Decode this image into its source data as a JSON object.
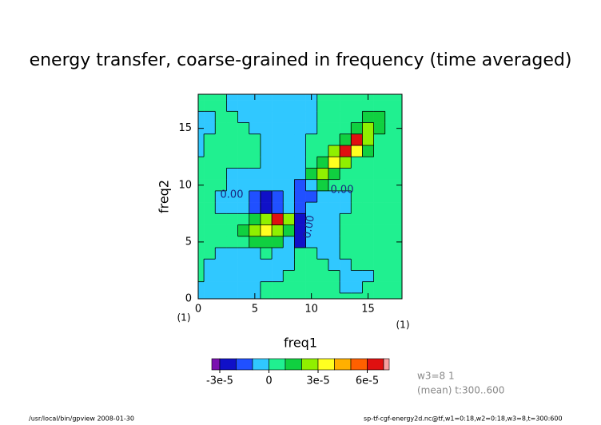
{
  "chart_data": {
    "type": "contour",
    "title": "energy transfer, coarse-grained in frequency (time averaged)",
    "xlabel": "freq1",
    "ylabel": "freq2",
    "x_unit": "(1)",
    "y_unit": "(1)",
    "xlim": [
      0,
      18
    ],
    "ylim": [
      0,
      18
    ],
    "xticks": [
      0,
      5,
      10,
      15
    ],
    "yticks": [
      0,
      5,
      10,
      15
    ],
    "z": [
      [
        -5e-06,
        -5e-06,
        -5e-06,
        -5e-06,
        -5e-06,
        -5e-06,
        5e-06,
        5e-06,
        5e-06,
        5e-06,
        5e-06,
        5e-06,
        5e-06,
        5e-06,
        5e-06,
        5e-06,
        5e-06,
        5e-06,
        5e-06
      ],
      [
        -5e-06,
        -5e-06,
        -5e-06,
        -5e-06,
        -5e-06,
        -5e-06,
        5e-06,
        5e-06,
        5e-06,
        5e-06,
        5e-06,
        5e-06,
        5e-06,
        -5e-06,
        -5e-06,
        5e-06,
        5e-06,
        5e-06,
        5e-06
      ],
      [
        5e-06,
        -5e-06,
        -5e-06,
        -5e-06,
        -5e-06,
        -5e-06,
        -5e-06,
        -5e-06,
        5e-06,
        5e-06,
        5e-06,
        5e-06,
        5e-06,
        -5e-06,
        -5e-06,
        -5e-06,
        5e-06,
        5e-06,
        5e-06
      ],
      [
        5e-06,
        -5e-06,
        -5e-06,
        -5e-06,
        -5e-06,
        -5e-06,
        -5e-06,
        -5e-06,
        -5e-06,
        5e-06,
        5e-06,
        5e-06,
        -5e-06,
        -5e-06,
        5e-06,
        5e-06,
        5e-06,
        5e-06,
        5e-06
      ],
      [
        5e-06,
        5e-06,
        -5e-06,
        -5e-06,
        -5e-06,
        -5e-06,
        5e-06,
        -5e-06,
        -5e-06,
        5e-06,
        5e-06,
        -5e-06,
        -5e-06,
        5e-06,
        5e-06,
        5e-06,
        5e-06,
        5e-06,
        5e-06
      ],
      [
        5e-06,
        5e-06,
        5e-06,
        5e-06,
        5e-06,
        1.5e-05,
        1.5e-05,
        1.5e-05,
        -5e-06,
        -2.5e-05,
        -5e-06,
        -5e-06,
        -5e-06,
        5e-06,
        5e-06,
        5e-06,
        5e-06,
        5e-06,
        5e-06
      ],
      [
        5e-06,
        5e-06,
        5e-06,
        5e-06,
        1.5e-05,
        2.5e-05,
        3.5e-05,
        2.5e-05,
        1.5e-05,
        -2.5e-05,
        -5e-06,
        -5e-06,
        -5e-06,
        5e-06,
        5e-06,
        5e-06,
        5e-06,
        5e-06,
        5e-06
      ],
      [
        5e-06,
        5e-06,
        5e-06,
        5e-06,
        5e-06,
        1.5e-05,
        2.5e-05,
        6.5e-05,
        2.5e-05,
        -2.5e-05,
        -5e-06,
        -5e-06,
        -5e-06,
        5e-06,
        5e-06,
        5e-06,
        5e-06,
        5e-06,
        5e-06
      ],
      [
        5e-06,
        5e-06,
        -5e-06,
        -5e-06,
        -5e-06,
        -1.5e-05,
        -2.5e-05,
        -1.5e-05,
        -5e-06,
        -1.5e-05,
        -5e-06,
        -5e-06,
        -5e-06,
        -5e-06,
        5e-06,
        5e-06,
        5e-06,
        5e-06,
        5e-06
      ],
      [
        5e-06,
        5e-06,
        -5e-06,
        -5e-06,
        -5e-06,
        -1.5e-05,
        -2.5e-05,
        -1.5e-05,
        -5e-06,
        -1.5e-05,
        -1.5e-05,
        -5e-06,
        -5e-06,
        -5e-06,
        5e-06,
        5e-06,
        5e-06,
        5e-06,
        5e-06
      ],
      [
        5e-06,
        5e-06,
        5e-06,
        -5e-06,
        -5e-06,
        -5e-06,
        -5e-06,
        -5e-06,
        -5e-06,
        -1.5e-05,
        -5e-06,
        1.5e-05,
        5e-06,
        5e-06,
        5e-06,
        5e-06,
        5e-06,
        5e-06,
        5e-06
      ],
      [
        5e-06,
        5e-06,
        5e-06,
        -5e-06,
        -5e-06,
        -5e-06,
        -5e-06,
        -5e-06,
        -5e-06,
        -5e-06,
        1.5e-05,
        2.5e-05,
        1.5e-05,
        5e-06,
        5e-06,
        5e-06,
        5e-06,
        5e-06,
        5e-06
      ],
      [
        5e-06,
        5e-06,
        5e-06,
        5e-06,
        5e-06,
        5e-06,
        -5e-06,
        -5e-06,
        -5e-06,
        -5e-06,
        5e-06,
        1.5e-05,
        3.5e-05,
        2.5e-05,
        5e-06,
        5e-06,
        5e-06,
        5e-06,
        5e-06
      ],
      [
        -5e-06,
        5e-06,
        5e-06,
        5e-06,
        5e-06,
        5e-06,
        -5e-06,
        -5e-06,
        -5e-06,
        -5e-06,
        5e-06,
        5e-06,
        2.5e-05,
        6.5e-05,
        3.5e-05,
        1.5e-05,
        5e-06,
        5e-06,
        5e-06
      ],
      [
        -5e-06,
        5e-06,
        5e-06,
        5e-06,
        5e-06,
        5e-06,
        -5e-06,
        -5e-06,
        -5e-06,
        -5e-06,
        5e-06,
        5e-06,
        5e-06,
        1.5e-05,
        6.5e-05,
        2.5e-05,
        5e-06,
        5e-06,
        5e-06
      ],
      [
        -5e-06,
        -5e-06,
        5e-06,
        5e-06,
        5e-06,
        -5e-06,
        -5e-06,
        -5e-06,
        -5e-06,
        -5e-06,
        -5e-06,
        5e-06,
        5e-06,
        5e-06,
        1.5e-05,
        2.5e-05,
        1.5e-05,
        5e-06,
        5e-06
      ],
      [
        -5e-06,
        -5e-06,
        5e-06,
        5e-06,
        -5e-06,
        -5e-06,
        -5e-06,
        -5e-06,
        -5e-06,
        -5e-06,
        -5e-06,
        5e-06,
        5e-06,
        5e-06,
        5e-06,
        1.5e-05,
        1.5e-05,
        5e-06,
        5e-06
      ],
      [
        5e-06,
        5e-06,
        5e-06,
        -5e-06,
        -5e-06,
        -5e-06,
        -5e-06,
        -5e-06,
        -5e-06,
        -5e-06,
        -5e-06,
        5e-06,
        5e-06,
        5e-06,
        5e-06,
        5e-06,
        5e-06,
        5e-06,
        5e-06
      ],
      [
        5e-06,
        5e-06,
        5e-06,
        -5e-06,
        -5e-06,
        -5e-06,
        -5e-06,
        -5e-06,
        -5e-06,
        -5e-06,
        -5e-06,
        5e-06,
        5e-06,
        5e-06,
        5e-06,
        5e-06,
        5e-06,
        5e-06,
        5e-06
      ]
    ],
    "levels": [
      -3e-05,
      -2e-05,
      -1e-05,
      0,
      1e-05,
      2e-05,
      3e-05,
      4e-05,
      5e-05,
      6e-05,
      7e-05
    ],
    "colors": [
      "#7a10b0",
      "#1010c8",
      "#2050ff",
      "#30c8ff",
      "#20f090",
      "#10d040",
      "#90f000",
      "#ffff20",
      "#ffb000",
      "#ff6000",
      "#e01010",
      "#f8a0a0"
    ],
    "colorbar_ticks": [
      {
        "value": -3e-05,
        "label": "-3e-5"
      },
      0,
      {
        "value": 3e-05,
        "label": "3e-5"
      },
      {
        "value": 6e-05,
        "label": "6e-5"
      }
    ],
    "contour_labels": [
      "0.00",
      "0.00",
      "0.00"
    ],
    "notes": [
      "w3=8 1",
      "(mean) t:300..600"
    ],
    "footer_left": "/usr/local/bin/gpview  2008-01-30",
    "footer_right": "sp-tf-cgf-energy2d.nc@tf,w1=0:18,w2=0:18,w3=8,t=300:600"
  }
}
